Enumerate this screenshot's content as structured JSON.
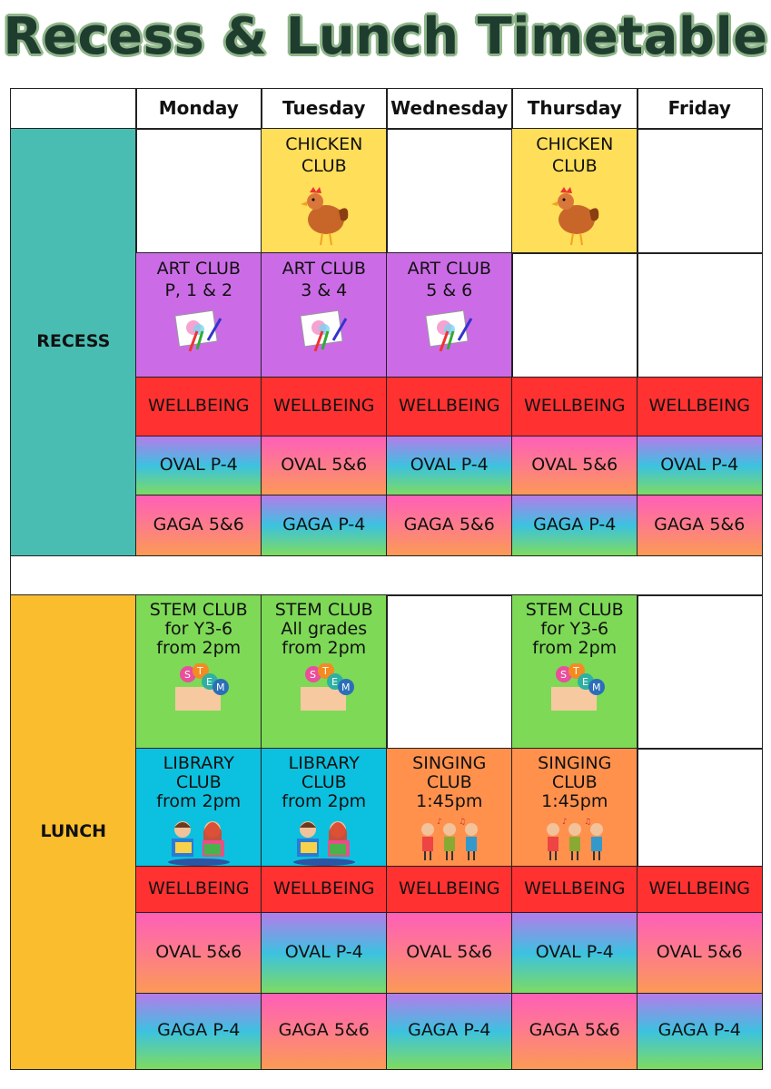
{
  "title": "Recess & Lunch Timetable",
  "days": [
    "Monday",
    "Tuesday",
    "Wednesday",
    "Thursday",
    "Friday"
  ],
  "colors": {
    "yellow": "#FFDE59",
    "purple": "#CB6CE6",
    "red": "#FF3131",
    "green": "#7ED957",
    "blue": "#0CC0DF",
    "orange": "#FF914D",
    "teal": "#4ABDB3",
    "lunch": "#F9BD2E"
  },
  "sections": [
    {
      "label": "RECESS",
      "color": "teal",
      "rows": [
        [
          {
            "lines": []
          },
          {
            "lines": [
              "CHICKEN",
              "CLUB"
            ],
            "bg": "yellow",
            "icon": "chicken-icon"
          },
          {
            "lines": []
          },
          {
            "lines": [
              "CHICKEN",
              "CLUB"
            ],
            "bg": "yellow",
            "icon": "chicken-icon"
          },
          {
            "lines": []
          }
        ],
        [
          {
            "lines": [
              "ART CLUB",
              "P, 1 & 2"
            ],
            "bg": "purple",
            "icon": "drawing-pad-icon"
          },
          {
            "lines": [
              "ART CLUB",
              "3 & 4"
            ],
            "bg": "purple",
            "icon": "drawing-pad-icon"
          },
          {
            "lines": [
              "ART CLUB",
              "5 & 6"
            ],
            "bg": "purple",
            "icon": "drawing-pad-icon"
          },
          {
            "lines": []
          },
          {
            "lines": []
          }
        ],
        [
          {
            "lines": [
              "WELLBEING"
            ],
            "bg": "red"
          },
          {
            "lines": [
              "WELLBEING"
            ],
            "bg": "red"
          },
          {
            "lines": [
              "WELLBEING"
            ],
            "bg": "red"
          },
          {
            "lines": [
              "WELLBEING"
            ],
            "bg": "red"
          },
          {
            "lines": [
              "WELLBEING"
            ],
            "bg": "red"
          }
        ],
        [
          {
            "lines": [
              "OVAL P-4"
            ],
            "bg": "cool"
          },
          {
            "lines": [
              "OVAL 5&6"
            ],
            "bg": "warm"
          },
          {
            "lines": [
              "OVAL P-4"
            ],
            "bg": "cool"
          },
          {
            "lines": [
              "OVAL 5&6"
            ],
            "bg": "warm"
          },
          {
            "lines": [
              "OVAL P-4"
            ],
            "bg": "cool"
          }
        ],
        [
          {
            "lines": [
              "GAGA 5&6"
            ],
            "bg": "warm"
          },
          {
            "lines": [
              "GAGA P-4"
            ],
            "bg": "cool"
          },
          {
            "lines": [
              "GAGA 5&6"
            ],
            "bg": "warm"
          },
          {
            "lines": [
              "GAGA P-4"
            ],
            "bg": "cool"
          },
          {
            "lines": [
              "GAGA 5&6"
            ],
            "bg": "warm"
          }
        ]
      ]
    },
    {
      "label": "LUNCH",
      "color": "lunch",
      "rows": [
        [
          {
            "lines": [
              "STEM CLUB",
              "for Y3-6",
              "from 2pm"
            ],
            "bg": "green",
            "icon": "stem-icon"
          },
          {
            "lines": [
              "STEM CLUB",
              "All grades",
              "from 2pm"
            ],
            "bg": "green",
            "icon": "stem-icon"
          },
          {
            "lines": []
          },
          {
            "lines": [
              "STEM CLUB",
              "for Y3-6",
              "from 2pm"
            ],
            "bg": "green",
            "icon": "stem-icon"
          },
          {
            "lines": []
          }
        ],
        [
          {
            "lines": [
              "LIBRARY",
              "CLUB",
              "from 2pm"
            ],
            "bg": "blue",
            "icon": "reading-kids-icon"
          },
          {
            "lines": [
              "LIBRARY",
              "CLUB",
              "from 2pm"
            ],
            "bg": "blue",
            "icon": "reading-kids-icon"
          },
          {
            "lines": [
              "SINGING",
              "CLUB",
              "1:45pm"
            ],
            "bg": "orange",
            "icon": "singing-kids-icon"
          },
          {
            "lines": [
              "SINGING",
              "CLUB",
              "1:45pm"
            ],
            "bg": "orange",
            "icon": "singing-kids-icon"
          },
          {
            "lines": []
          }
        ],
        [
          {
            "lines": [
              "WELLBEING"
            ],
            "bg": "red"
          },
          {
            "lines": [
              "WELLBEING"
            ],
            "bg": "red"
          },
          {
            "lines": [
              "WELLBEING"
            ],
            "bg": "red"
          },
          {
            "lines": [
              "WELLBEING"
            ],
            "bg": "red"
          },
          {
            "lines": [
              "WELLBEING"
            ],
            "bg": "red"
          }
        ],
        [
          {
            "lines": [
              "OVAL 5&6"
            ],
            "bg": "warm"
          },
          {
            "lines": [
              "OVAL P-4"
            ],
            "bg": "cool"
          },
          {
            "lines": [
              "OVAL 5&6"
            ],
            "bg": "warm"
          },
          {
            "lines": [
              "OVAL P-4"
            ],
            "bg": "cool"
          },
          {
            "lines": [
              "OVAL 5&6"
            ],
            "bg": "warm"
          }
        ],
        [
          {
            "lines": [
              "GAGA P-4"
            ],
            "bg": "cool"
          },
          {
            "lines": [
              "GAGA 5&6"
            ],
            "bg": "warm"
          },
          {
            "lines": [
              "GAGA P-4"
            ],
            "bg": "cool"
          },
          {
            "lines": [
              "GAGA 5&6"
            ],
            "bg": "warm"
          },
          {
            "lines": [
              "GAGA P-4"
            ],
            "bg": "cool"
          }
        ]
      ]
    }
  ]
}
